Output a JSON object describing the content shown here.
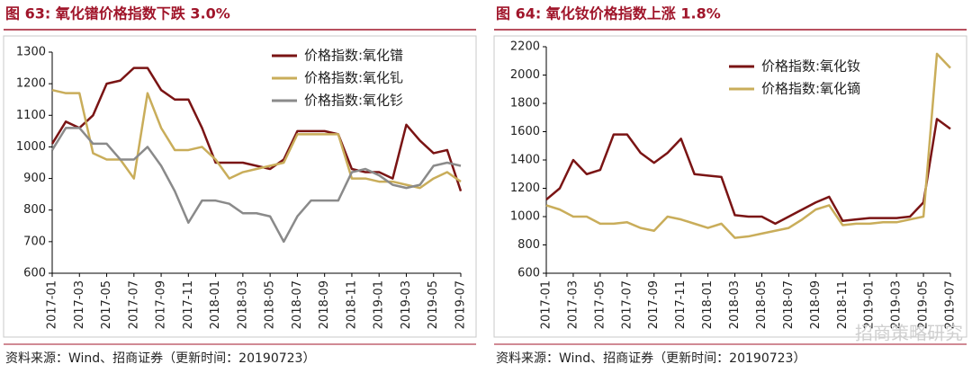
{
  "chart_data": [
    {
      "type": "line",
      "title": "图 63:  氧化镨价格指数下跌 3.0%",
      "source": "资料来源：Wind、招商证券（更新时间：20190723）",
      "categories": [
        "2017-01",
        null,
        "2017-03",
        null,
        "2017-05",
        null,
        "2017-07",
        null,
        "2017-09",
        null,
        "2017-11",
        null,
        "2018-01",
        null,
        "2018-03",
        null,
        "2018-05",
        null,
        "2018-07",
        null,
        "2018-09",
        null,
        "2018-11",
        null,
        "2019-01",
        null,
        "2019-03",
        null,
        "2019-05",
        null,
        "2019-07"
      ],
      "ylim": [
        600,
        1300
      ],
      "yticks": [
        600,
        700,
        800,
        900,
        1000,
        1100,
        1200,
        1300
      ],
      "legend": "upper right",
      "series": [
        {
          "name": "价格指数:氧化镨",
          "color": "#7a1414",
          "values": [
            1010,
            1080,
            1060,
            1100,
            1200,
            1210,
            1250,
            1250,
            1180,
            1150,
            1150,
            1060,
            950,
            950,
            950,
            940,
            930,
            960,
            1050,
            1050,
            1050,
            1040,
            930,
            920,
            920,
            900,
            1070,
            1020,
            980,
            990,
            860
          ]
        },
        {
          "name": "价格指数:氧化钆",
          "color": "#c9ad5a",
          "values": [
            1180,
            1170,
            1170,
            980,
            960,
            960,
            900,
            1170,
            1060,
            990,
            990,
            1000,
            960,
            900,
            920,
            930,
            940,
            950,
            1040,
            1040,
            1040,
            1040,
            900,
            900,
            890,
            890,
            880,
            870,
            900,
            920,
            890
          ]
        },
        {
          "name": "价格指数:氧化钐",
          "color": "#8a8a8a",
          "values": [
            990,
            1060,
            1060,
            1010,
            1010,
            960,
            960,
            1000,
            940,
            860,
            760,
            830,
            830,
            820,
            790,
            790,
            780,
            700,
            780,
            830,
            830,
            830,
            920,
            930,
            910,
            880,
            870,
            880,
            940,
            950,
            940
          ]
        }
      ]
    },
    {
      "type": "line",
      "title": "图 64:  氧化钕价格指数上涨 1.8%",
      "source": "资料来源：Wind、招商证券（更新时间：20190723）",
      "categories": [
        "2017-01",
        null,
        "2017-03",
        null,
        "2017-05",
        null,
        "2017-07",
        null,
        "2017-09",
        null,
        "2017-11",
        null,
        "2018-01",
        null,
        "2018-03",
        null,
        "2018-05",
        null,
        "2018-07",
        null,
        "2018-09",
        null,
        "2018-11",
        null,
        "2019-01",
        null,
        "2019-03",
        null,
        "2019-05",
        null,
        "2019-07"
      ],
      "ylim": [
        600,
        2200
      ],
      "yticks": [
        600,
        800,
        1000,
        1200,
        1400,
        1600,
        1800,
        2000,
        2200
      ],
      "legend": "upper center",
      "series": [
        {
          "name": "价格指数:氧化钕",
          "color": "#7a1414",
          "values": [
            1120,
            1200,
            1400,
            1300,
            1330,
            1580,
            1580,
            1450,
            1380,
            1450,
            1550,
            1300,
            1290,
            1280,
            1010,
            1000,
            1000,
            950,
            1000,
            1050,
            1100,
            1140,
            970,
            980,
            990,
            990,
            990,
            1000,
            1100,
            1690,
            1620
          ]
        },
        {
          "name": "价格指数:氧化镝",
          "color": "#c9ad5a",
          "values": [
            1080,
            1050,
            1000,
            1000,
            950,
            950,
            960,
            920,
            900,
            1000,
            980,
            950,
            920,
            950,
            850,
            860,
            880,
            900,
            920,
            980,
            1050,
            1080,
            940,
            950,
            950,
            960,
            960,
            980,
            1000,
            2150,
            2050
          ]
        }
      ]
    }
  ],
  "watermark": "招商策略研究"
}
